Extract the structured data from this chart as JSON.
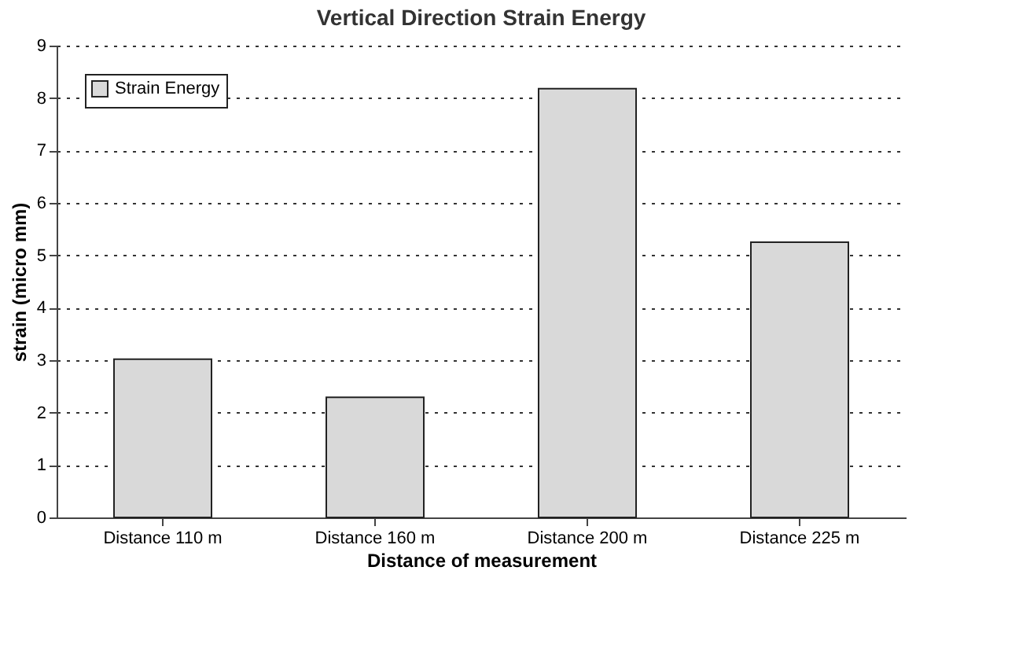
{
  "chart_data": {
    "type": "bar",
    "title": "Vertical Direction Strain Energy",
    "xlabel": "Distance of measurement",
    "ylabel": "strain (micro mm)",
    "categories": [
      "Distance 110 m",
      "Distance 160 m",
      "Distance 200 m",
      "Distance 225 m"
    ],
    "series": [
      {
        "name": "Strain Energy",
        "color": "#d9d9d9",
        "values": [
          3.02,
          2.29,
          8.18,
          5.25
        ]
      }
    ],
    "ylim": [
      0,
      9
    ],
    "yticks": [
      0,
      1,
      2,
      3,
      4,
      5,
      6,
      7,
      8,
      9
    ],
    "grid": "y",
    "legend": "top left"
  }
}
